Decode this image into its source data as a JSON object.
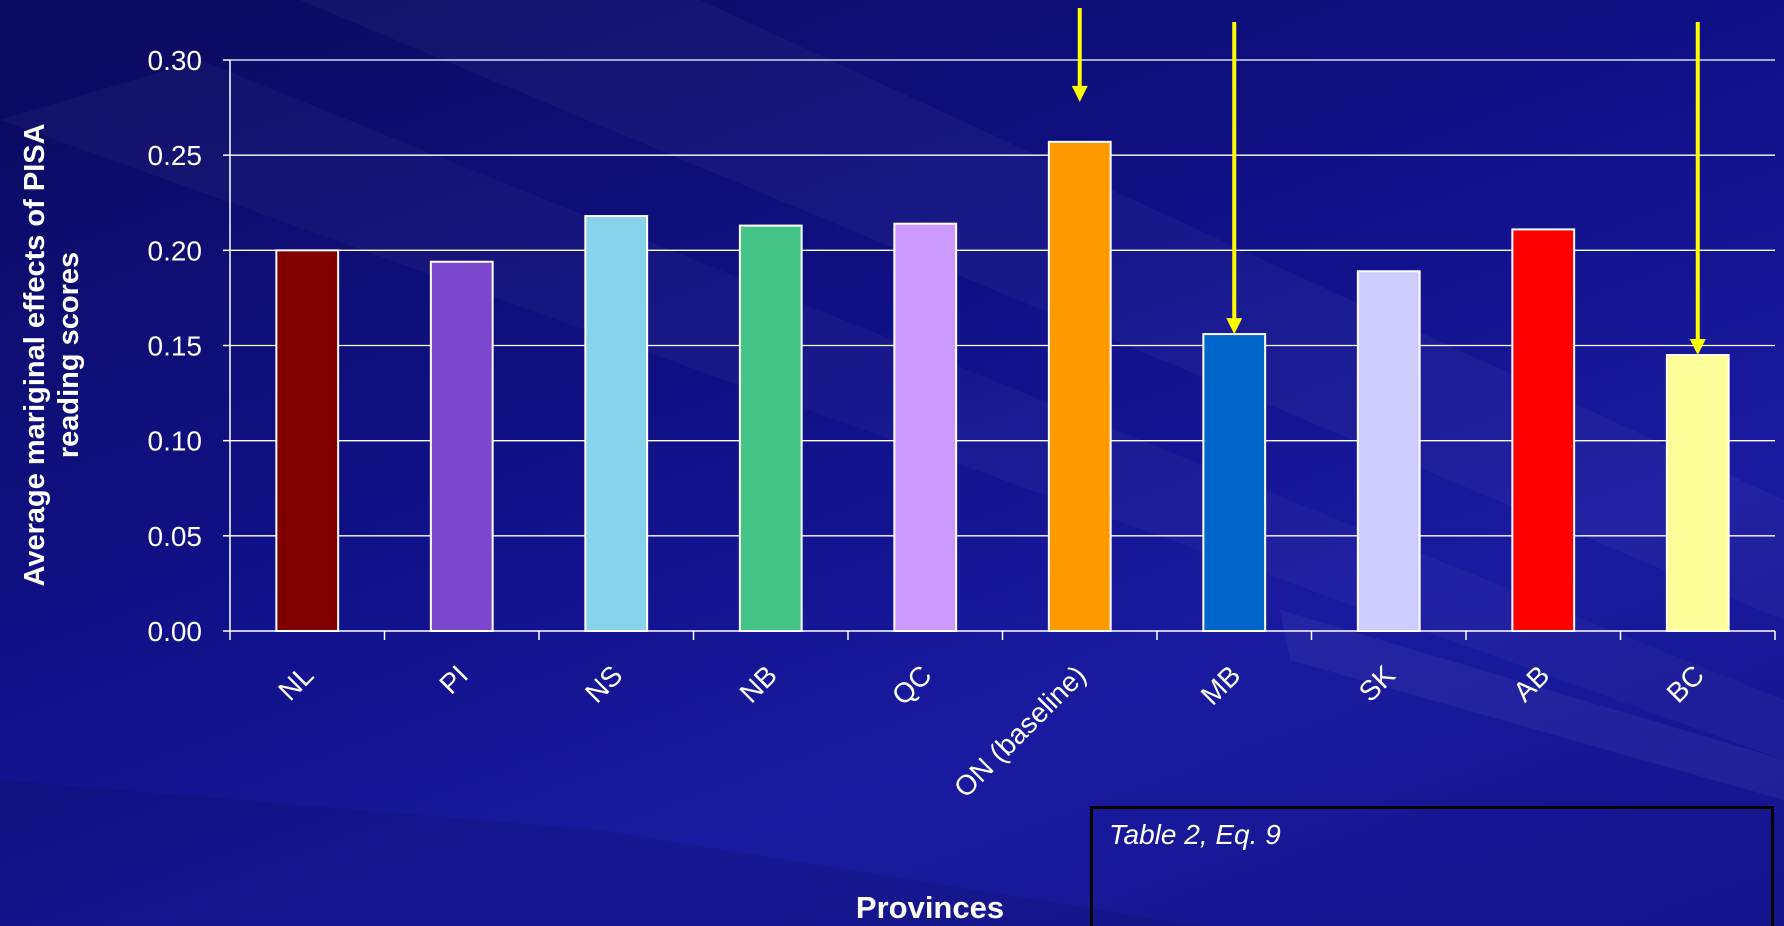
{
  "chart_data": {
    "type": "bar",
    "title": "",
    "xlabel": "Provinces",
    "ylabel": "Average mariginal effects of PISA\nreading scores",
    "categories": [
      "NL",
      "PI",
      "NS",
      "NB",
      "QC",
      "ON (baseline)",
      "MB",
      "SK",
      "AB",
      "BC"
    ],
    "values": [
      0.2,
      0.194,
      0.218,
      0.213,
      0.214,
      0.257,
      0.156,
      0.189,
      0.211,
      0.145
    ],
    "colors": [
      "#800000",
      "#7b47cc",
      "#87d3eb",
      "#45c488",
      "#cc99ff",
      "#ff9900",
      "#0066cc",
      "#ccccff",
      "#ff0000",
      "#ffff99"
    ],
    "ylim": [
      0,
      0.3
    ],
    "yticks": [
      "0.00",
      "0.05",
      "0.10",
      "0.15",
      "0.20",
      "0.25",
      "0.30"
    ],
    "grid": true,
    "highlighted": [
      "ON (baseline)",
      "MB",
      "BC"
    ],
    "highlight_color": "#ffff00"
  },
  "note": "Table 2, Eq. 9"
}
